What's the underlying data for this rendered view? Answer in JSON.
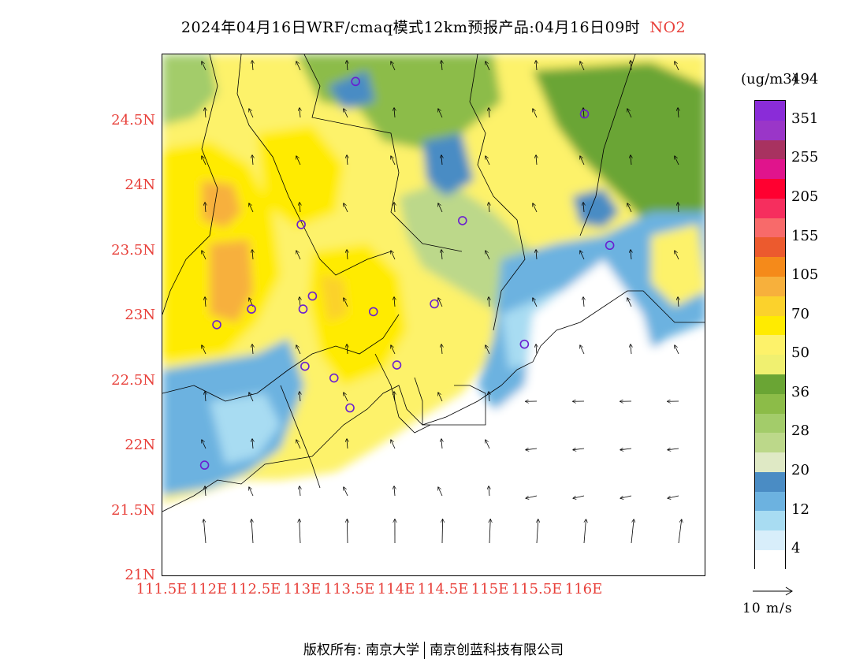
{
  "title": {
    "text": "2024年04月16日WRF/cmaq模式12km预报产品:04月16日09时",
    "pollutant": "NO2",
    "pollutant_color": "#e8403a"
  },
  "axes": {
    "y_ticks": [
      "24.5N",
      "24N",
      "23.5N",
      "23N",
      "22.5N",
      "22N",
      "21.5N",
      "21N"
    ],
    "x_ticks": [
      "111.5E",
      "112E",
      "112.5E",
      "113E",
      "113.5E",
      "114E",
      "114.5E",
      "115E",
      "115.5E",
      "116E"
    ],
    "tick_color": "#e8403a"
  },
  "colorbar": {
    "unit": "(ug/m3)",
    "colors_bottom_to_top": [
      "#ffffff",
      "#d8eefa",
      "#a8dcf2",
      "#6cb2e0",
      "#4a8cc4",
      "#dfe9c5",
      "#bcd88a",
      "#a3cc6a",
      "#8cbc48",
      "#6aa534",
      "#f0f070",
      "#fdf26a",
      "#ffeb00",
      "#fbd22c",
      "#f7b03c",
      "#f58a1a",
      "#ec5a2e",
      "#f86a6a",
      "#f62e5e",
      "#ff0030",
      "#e0148c",
      "#a83260",
      "#9a36c8",
      "#8a2cd8"
    ],
    "labels": [
      "4",
      "12",
      "20",
      "28",
      "36",
      "50",
      "70",
      "105",
      "155",
      "205",
      "255",
      "351",
      "494"
    ]
  },
  "wind_reference": {
    "label": "10 m/s"
  },
  "stations": [
    {
      "lon": 113.56,
      "lat": 24.81
    },
    {
      "lon": 116.0,
      "lat": 24.56
    },
    {
      "lon": 112.98,
      "lat": 23.71
    },
    {
      "lon": 114.7,
      "lat": 23.74
    },
    {
      "lon": 116.27,
      "lat": 23.55
    },
    {
      "lon": 113.1,
      "lat": 23.16
    },
    {
      "lon": 112.45,
      "lat": 23.06
    },
    {
      "lon": 113.0,
      "lat": 23.06
    },
    {
      "lon": 113.75,
      "lat": 23.04
    },
    {
      "lon": 114.4,
      "lat": 23.1
    },
    {
      "lon": 112.08,
      "lat": 22.94
    },
    {
      "lon": 115.36,
      "lat": 22.79
    },
    {
      "lon": 113.02,
      "lat": 22.62
    },
    {
      "lon": 114.0,
      "lat": 22.63
    },
    {
      "lon": 113.33,
      "lat": 22.53
    },
    {
      "lon": 113.5,
      "lat": 22.3
    },
    {
      "lon": 111.95,
      "lat": 21.86
    }
  ],
  "footer": {
    "left": "版权所有: 南京大学",
    "right": "南京创蓝科技有限公司"
  }
}
